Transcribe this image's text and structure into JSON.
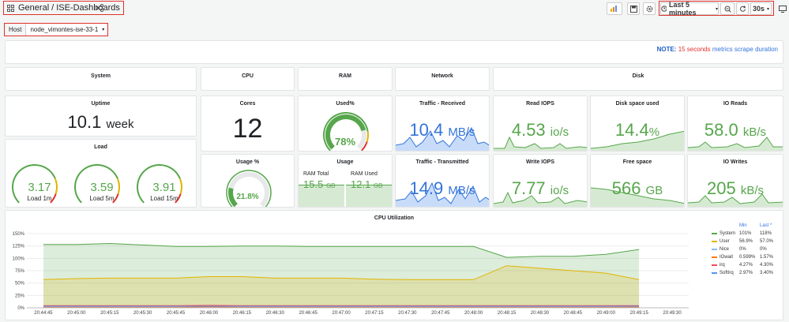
{
  "breadcrumb": {
    "folder": "General",
    "separator": "/",
    "dashboard": "ISE-Dashboards"
  },
  "toolbar": {
    "time_range": "Last 5 minutes",
    "refresh": "30s"
  },
  "variables": {
    "host_label": "Host",
    "host_value": "node_vimontes-ise-33-1"
  },
  "note": {
    "prefix": "NOTE:",
    "highlight": "15 seconds",
    "suffix": "metrics scrape duration"
  },
  "rows": {
    "system": "System",
    "cpu": "CPU",
    "ram": "RAM",
    "network": "Network",
    "disk": "Disk"
  },
  "uptime": {
    "title": "Uptime",
    "value": "10.1",
    "unit": "week"
  },
  "cores": {
    "title": "Cores",
    "value": "12"
  },
  "used_pct": {
    "title": "Used%",
    "value": "78%",
    "fraction": 0.78
  },
  "traffic_rx": {
    "title": "Traffic - Received",
    "value": "10.4",
    "unit": "MB/s"
  },
  "read_iops": {
    "title": "Read IOPS",
    "value": "4.53",
    "unit": "io/s"
  },
  "disk_used": {
    "title": "Disk space used",
    "value": "14.4",
    "unit": "%"
  },
  "io_reads": {
    "title": "IO Reads",
    "value": "58.0",
    "unit": "kB/s"
  },
  "load": {
    "title": "Load",
    "gauges": [
      {
        "value": "3.17",
        "label": "Load 1m"
      },
      {
        "value": "3.59",
        "label": "Load 5m"
      },
      {
        "value": "3.91",
        "label": "Load 15m"
      }
    ]
  },
  "usage_pct": {
    "title": "Usage %",
    "value": "21.8%",
    "fraction": 0.218
  },
  "usage": {
    "title": "Usage",
    "ram_total_label": "RAM Total",
    "ram_total_value": "15.5",
    "ram_total_unit": "GB",
    "ram_used_label": "RAM Used",
    "ram_used_value": "12.1",
    "ram_used_unit": "GB"
  },
  "traffic_tx": {
    "title": "Traffic - Transmitted",
    "value": "14.9",
    "unit": "MB/s"
  },
  "write_iops": {
    "title": "Write IOPS",
    "value": "7.77",
    "unit": "io/s"
  },
  "free_space": {
    "title": "Free space",
    "value": "566",
    "unit": "GB"
  },
  "io_writes": {
    "title": "IO Writes",
    "value": "205",
    "unit": "kB/s"
  },
  "chart_data": {
    "type": "area",
    "title": "CPU Utilization",
    "ylim": [
      0,
      150
    ],
    "y_ticks": [
      "0%",
      "25%",
      "50%",
      "75%",
      "100%",
      "125%",
      "150%"
    ],
    "x": [
      "20:44:45",
      "20:45:00",
      "20:45:15",
      "20:45:30",
      "20:45:45",
      "20:46:00",
      "20:46:15",
      "20:46:30",
      "20:46:45",
      "20:47:00",
      "20:47:15",
      "20:47:30",
      "20:47:45",
      "20:48:00",
      "20:48:15",
      "20:48:30",
      "20:48:45",
      "20:49:00",
      "20:49:15"
    ],
    "x_ticks": [
      "20:44:45",
      "20:45:00",
      "20:45:15",
      "20:45:30",
      "20:45:45",
      "20:46:00",
      "20:46:15",
      "20:46:30",
      "20:46:45",
      "20:47:00",
      "20:47:15",
      "20:47:30",
      "20:47:45",
      "20:48:00",
      "20:48:15",
      "20:48:30",
      "20:48:45",
      "20:49:00",
      "20:49:15",
      "20:49:30"
    ],
    "legend_headers": {
      "min": "Min",
      "last": "Last *"
    },
    "series": [
      {
        "name": "System",
        "color": "#56a64b",
        "min": "101%",
        "last": "118%",
        "values": [
          128,
          128,
          130,
          127,
          124,
          124,
          125,
          125,
          124,
          124,
          124,
          124,
          124,
          124,
          102,
          104,
          104,
          108,
          118
        ]
      },
      {
        "name": "User",
        "color": "#e0b400",
        "min": "56.9%",
        "last": "57.0%",
        "values": [
          57,
          59,
          60,
          60,
          60,
          63,
          63,
          60,
          60,
          60,
          58,
          57,
          57,
          57,
          85,
          80,
          75,
          70,
          57
        ]
      },
      {
        "name": "Nice",
        "color": "#8ab8ff",
        "min": "0%",
        "last": "0%",
        "values": [
          0,
          0,
          0,
          0,
          0,
          0,
          0,
          0,
          0,
          0,
          0,
          0,
          0,
          0,
          0,
          0,
          0,
          0,
          0
        ]
      },
      {
        "name": "IOwait",
        "color": "#ff780a",
        "min": "0.599%",
        "last": "1.57%",
        "values": [
          1,
          1,
          1,
          1,
          1,
          2,
          1,
          1,
          1,
          1,
          1,
          1,
          1,
          1,
          1,
          1,
          1,
          1,
          1.6
        ]
      },
      {
        "name": "irq",
        "color": "#f2495c",
        "min": "4.27%",
        "last": "4.30%",
        "values": [
          4.3,
          4.3,
          4.3,
          4.3,
          4.3,
          5,
          4.3,
          4.3,
          4.3,
          4.3,
          4.3,
          4.3,
          4.3,
          4.3,
          4.3,
          4.3,
          4.3,
          4.3,
          4.3
        ]
      },
      {
        "name": "SoftIrq",
        "color": "#5794f2",
        "min": "2.97%",
        "last": "3.40%",
        "values": [
          3,
          3,
          3,
          3,
          3,
          3.2,
          3,
          3,
          3,
          3,
          3,
          3,
          3,
          3,
          3,
          3,
          3,
          3,
          3.4
        ]
      }
    ]
  }
}
